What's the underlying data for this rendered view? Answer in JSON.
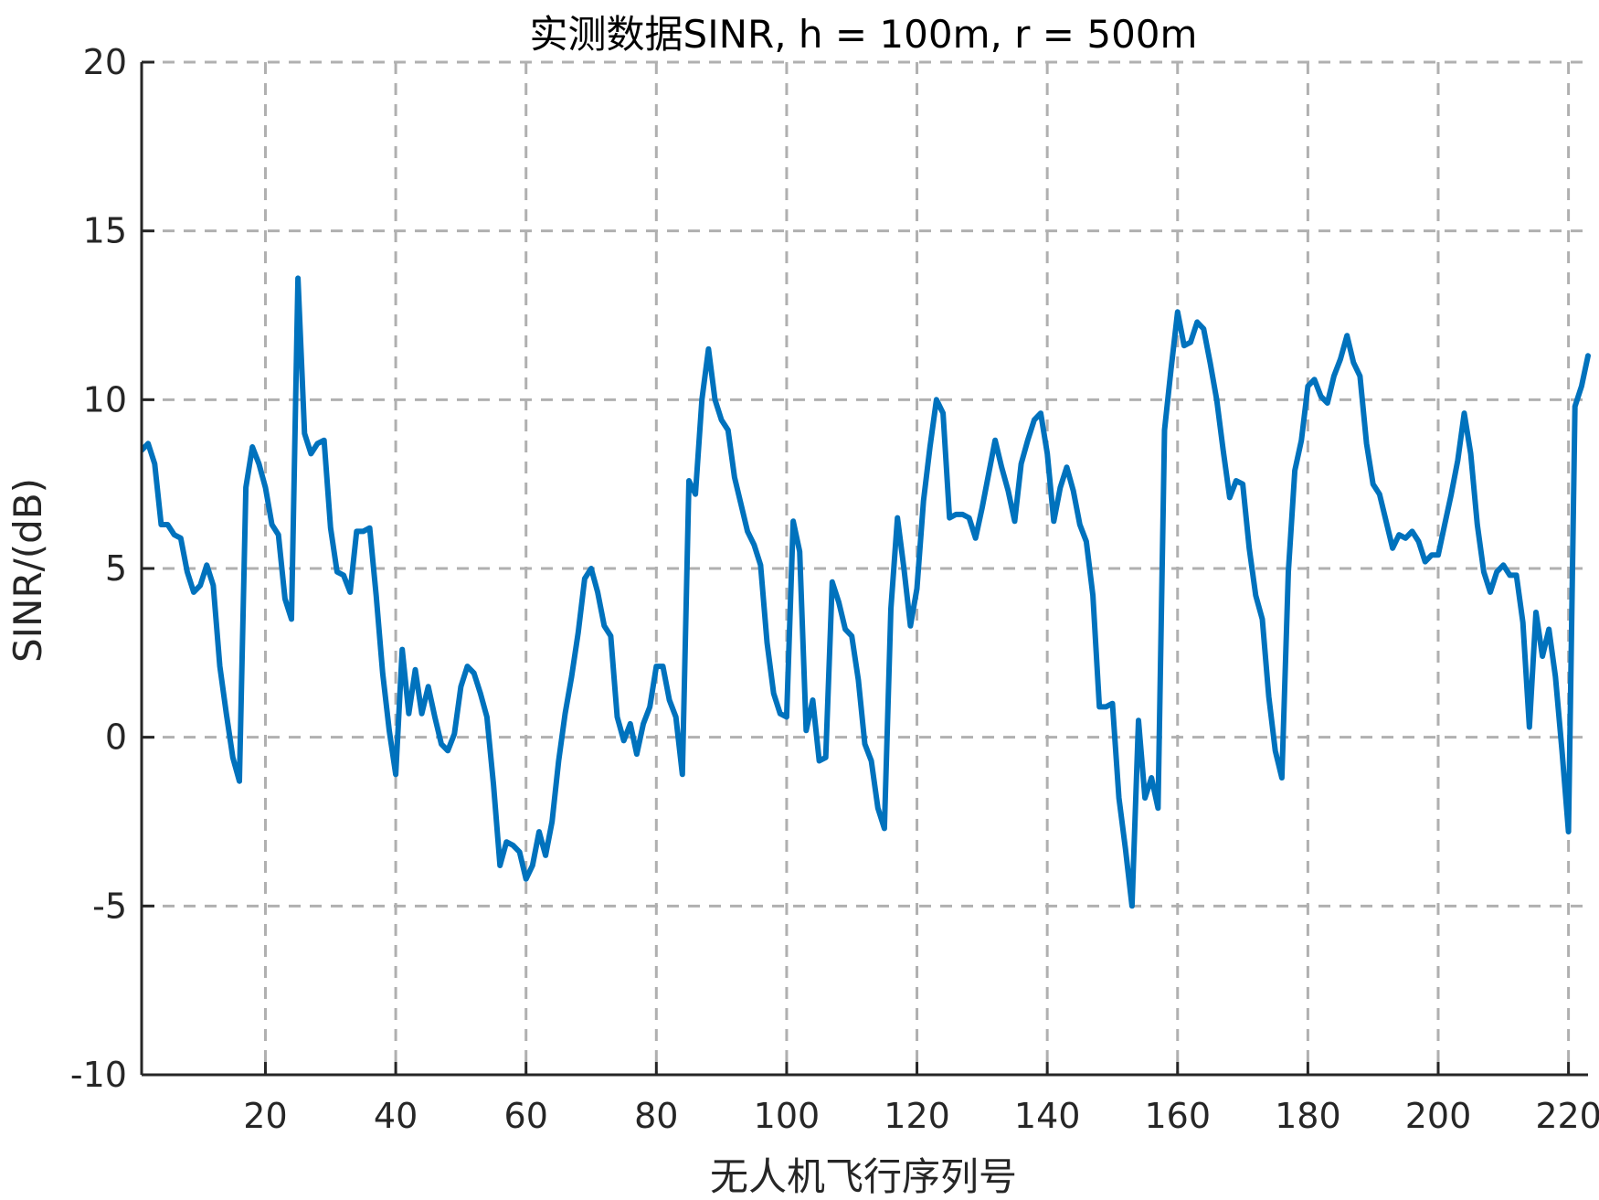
{
  "chart_data": {
    "type": "line",
    "title": "实测数据SINR, h = 100m, r = 500m",
    "xlabel": "无人机飞行序列号",
    "ylabel": "SINR/(dB)",
    "xlim": [
      1,
      223
    ],
    "ylim": [
      -10,
      20
    ],
    "xticks": [
      20,
      40,
      60,
      80,
      100,
      120,
      140,
      160,
      180,
      200,
      220
    ],
    "yticks": [
      -10,
      -5,
      0,
      5,
      10,
      15,
      20
    ],
    "ytick_labels": [
      "-10",
      "-5",
      "0",
      "5",
      "10",
      "15",
      "20"
    ],
    "grid": true,
    "line_color": "#0072BD",
    "series": [
      {
        "x": [
          1,
          2,
          3,
          4,
          5,
          6,
          7,
          8,
          9,
          10,
          11,
          12,
          13,
          14,
          15,
          16,
          17,
          18,
          19,
          20,
          21,
          22,
          23,
          24,
          25,
          26,
          27,
          28,
          29,
          30,
          31,
          32,
          33,
          34,
          35,
          36,
          37,
          38,
          39,
          40,
          41,
          42,
          43,
          44,
          45,
          46,
          47,
          48,
          49,
          50,
          51,
          52,
          53,
          54,
          55,
          56,
          57,
          58,
          59,
          60,
          61,
          62,
          63,
          64,
          65,
          66,
          67,
          68,
          69,
          70,
          71,
          72,
          73,
          74,
          75,
          76,
          77,
          78,
          79,
          80,
          81,
          82,
          83,
          84,
          85,
          86,
          87,
          88,
          89,
          90,
          91,
          92,
          93,
          94,
          95,
          96,
          97,
          98,
          99,
          100,
          101,
          102,
          103,
          104,
          105,
          106,
          107,
          108,
          109,
          110,
          111,
          112,
          113,
          114,
          115,
          116,
          117,
          118,
          119,
          120,
          121,
          122,
          123,
          124,
          125,
          126,
          127,
          128,
          129,
          130,
          131,
          132,
          133,
          134,
          135,
          136,
          137,
          138,
          139,
          140,
          141,
          142,
          143,
          144,
          145,
          146,
          147,
          148,
          149,
          150,
          151,
          152,
          153,
          154,
          155,
          156,
          157,
          158,
          159,
          160,
          161,
          162,
          163,
          164,
          165,
          166,
          167,
          168,
          169,
          170,
          171,
          172,
          173,
          174,
          175,
          176,
          177,
          178,
          179,
          180,
          181,
          182,
          183,
          184,
          185,
          186,
          187,
          188,
          189,
          190,
          191,
          192,
          193,
          194,
          195,
          196,
          197,
          198,
          199,
          200,
          201,
          202,
          203,
          204,
          205,
          206,
          207,
          208,
          209,
          210,
          211,
          212,
          213,
          214,
          215,
          216,
          217,
          218,
          219,
          220,
          221,
          222,
          223
        ],
        "values": [
          8.5,
          8.7,
          8.1,
          6.3,
          6.3,
          6.0,
          5.9,
          4.9,
          4.3,
          4.5,
          5.1,
          4.5,
          2.1,
          0.7,
          -0.6,
          -1.3,
          7.4,
          8.6,
          8.1,
          7.4,
          6.3,
          6.0,
          4.1,
          3.5,
          13.6,
          9.0,
          8.4,
          8.7,
          8.8,
          6.2,
          4.9,
          4.8,
          4.3,
          6.1,
          6.1,
          6.2,
          4.2,
          1.9,
          0.2,
          -1.1,
          2.6,
          0.7,
          2.0,
          0.7,
          1.5,
          0.6,
          -0.2,
          -0.4,
          0.1,
          1.5,
          2.1,
          1.9,
          1.3,
          0.6,
          -1.4,
          -3.8,
          -3.1,
          -3.2,
          -3.4,
          -4.2,
          -3.8,
          -2.8,
          -3.5,
          -2.5,
          -0.7,
          0.7,
          1.8,
          3.1,
          4.7,
          5.0,
          4.3,
          3.3,
          3.0,
          0.6,
          -0.1,
          0.4,
          -0.5,
          0.4,
          0.9,
          2.1,
          2.1,
          1.1,
          0.6,
          -1.1,
          7.6,
          7.2,
          10.0,
          11.5,
          10.0,
          9.4,
          9.1,
          7.7,
          6.9,
          6.1,
          5.7,
          5.1,
          2.8,
          1.3,
          0.7,
          0.6,
          6.4,
          5.5,
          0.2,
          1.1,
          -0.7,
          -0.6,
          4.6,
          4.0,
          3.2,
          3.0,
          1.7,
          -0.2,
          -0.7,
          -2.1,
          -2.7,
          3.8,
          6.5,
          5.0,
          3.3,
          4.4,
          7.0,
          8.6,
          10.0,
          9.6,
          6.5,
          6.6,
          6.6,
          6.5,
          5.9,
          6.8,
          7.8,
          8.8,
          8.0,
          7.3,
          6.4,
          8.1,
          8.8,
          9.4,
          9.6,
          8.4,
          6.4,
          7.4,
          8.0,
          7.3,
          6.3,
          5.8,
          4.2,
          0.9,
          0.9,
          1.0,
          -1.8,
          -3.3,
          -5.0,
          0.5,
          -1.8,
          -1.2,
          -2.1,
          9.1,
          10.9,
          12.6,
          11.6,
          11.7,
          12.3,
          12.1,
          11.1,
          10.0,
          8.5,
          7.1,
          7.6,
          7.5,
          5.6,
          4.2,
          3.5,
          1.2,
          -0.4,
          -1.2,
          4.9,
          7.9,
          8.8,
          10.4,
          10.6,
          10.1,
          9.9,
          10.7,
          11.2,
          11.9,
          11.1,
          10.7,
          8.7,
          7.5,
          7.2,
          6.4,
          5.6,
          6.0,
          5.9,
          6.1,
          5.8,
          5.2,
          5.4,
          5.4,
          6.3,
          7.2,
          8.2,
          9.6,
          8.4,
          6.3,
          4.9,
          4.3,
          4.9,
          5.1,
          4.8,
          4.8,
          3.4,
          0.3,
          3.7,
          2.4,
          3.2,
          1.8,
          -0.4,
          -2.8,
          9.8,
          10.4,
          11.3
        ]
      }
    ]
  }
}
